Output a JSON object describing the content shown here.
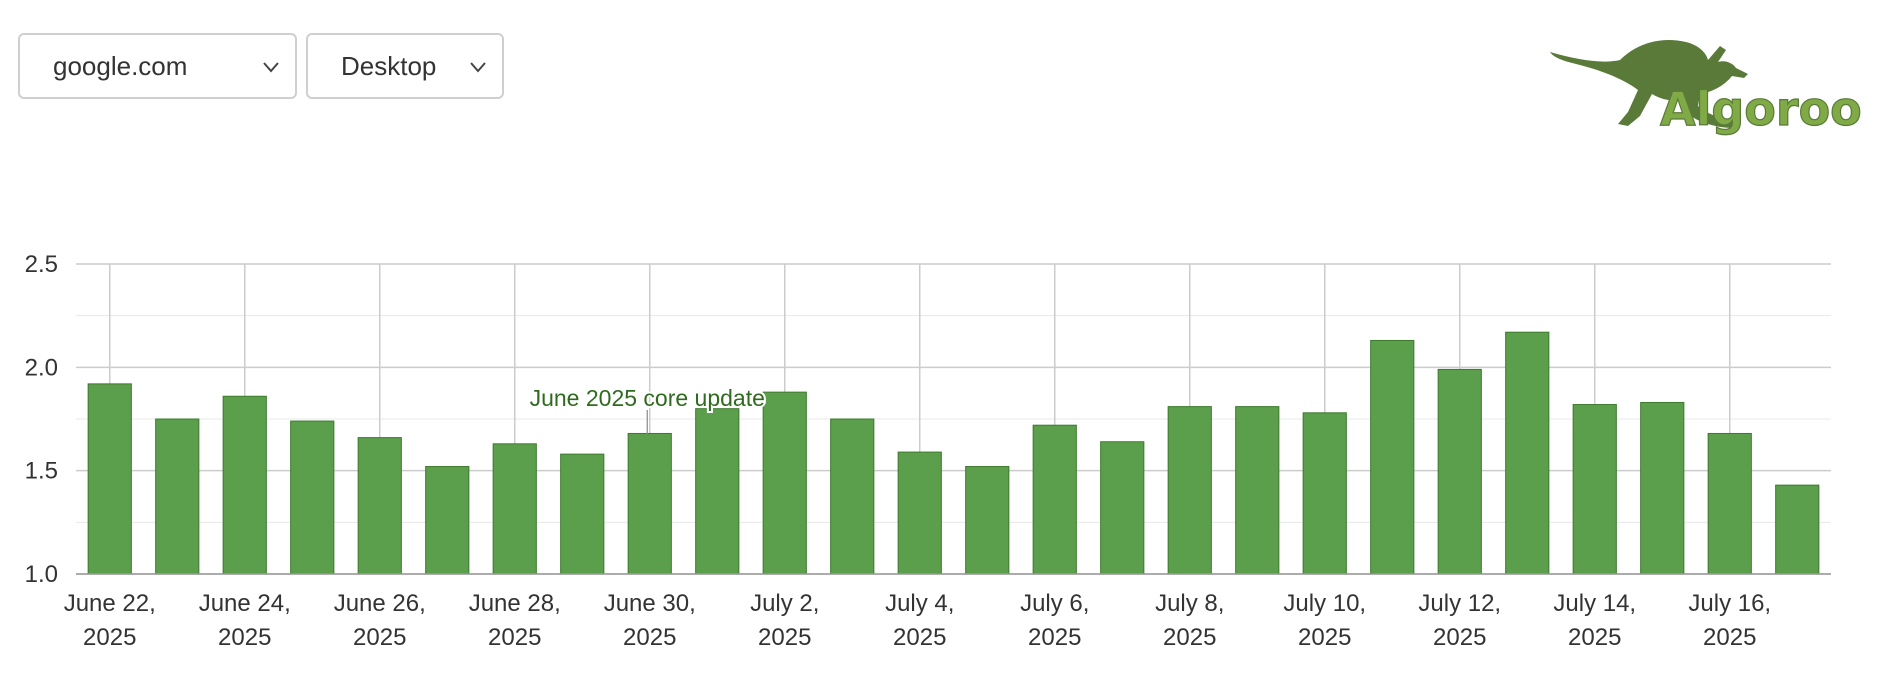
{
  "controls": {
    "domain_value": "google.com",
    "device_value": "Desktop"
  },
  "logo": {
    "text": "Algoroo",
    "icon": "kangaroo-icon",
    "color": "#5a7a3a"
  },
  "chart_data": {
    "type": "bar",
    "title": "",
    "xlabel": "",
    "ylabel": "",
    "ylim": [
      1.0,
      2.5
    ],
    "yticks": [
      "1.0",
      "1.5",
      "2.0",
      "2.5"
    ],
    "grid": true,
    "bar_color": "#5b9e4b",
    "bar_border_color": "#3d7a2e",
    "categories": [
      "2025-06-22",
      "2025-06-23",
      "2025-06-24",
      "2025-06-25",
      "2025-06-26",
      "2025-06-27",
      "2025-06-28",
      "2025-06-29",
      "2025-06-30",
      "2025-07-01",
      "2025-07-02",
      "2025-07-03",
      "2025-07-04",
      "2025-07-05",
      "2025-07-06",
      "2025-07-07",
      "2025-07-08",
      "2025-07-09",
      "2025-07-10",
      "2025-07-11",
      "2025-07-12",
      "2025-07-13",
      "2025-07-14",
      "2025-07-15",
      "2025-07-16",
      "2025-07-17"
    ],
    "values": [
      1.92,
      1.75,
      1.86,
      1.74,
      1.66,
      1.52,
      1.63,
      1.58,
      1.68,
      1.8,
      1.88,
      1.75,
      1.59,
      1.52,
      1.72,
      1.64,
      1.81,
      1.81,
      1.78,
      2.13,
      1.99,
      2.17,
      1.82,
      1.83,
      1.68,
      1.43
    ],
    "x_tick_labels": [
      {
        "date": "2025-06-22",
        "line1": "June 22,",
        "line2": "2025"
      },
      {
        "date": "2025-06-24",
        "line1": "June 24,",
        "line2": "2025"
      },
      {
        "date": "2025-06-26",
        "line1": "June 26,",
        "line2": "2025"
      },
      {
        "date": "2025-06-28",
        "line1": "June 28,",
        "line2": "2025"
      },
      {
        "date": "2025-06-30",
        "line1": "June 30,",
        "line2": "2025"
      },
      {
        "date": "2025-07-02",
        "line1": "July 2,",
        "line2": "2025"
      },
      {
        "date": "2025-07-04",
        "line1": "July 4,",
        "line2": "2025"
      },
      {
        "date": "2025-07-06",
        "line1": "July 6,",
        "line2": "2025"
      },
      {
        "date": "2025-07-08",
        "line1": "July 8,",
        "line2": "2025"
      },
      {
        "date": "2025-07-10",
        "line1": "July 10,",
        "line2": "2025"
      },
      {
        "date": "2025-07-12",
        "line1": "July 12,",
        "line2": "2025"
      },
      {
        "date": "2025-07-14",
        "line1": "July 14,",
        "line2": "2025"
      },
      {
        "date": "2025-07-16",
        "line1": "July 16,",
        "line2": "2025"
      }
    ],
    "annotations": [
      {
        "label": "June 2025 core update",
        "date": "2025-07-01",
        "color": "#2f6b1f"
      }
    ]
  }
}
